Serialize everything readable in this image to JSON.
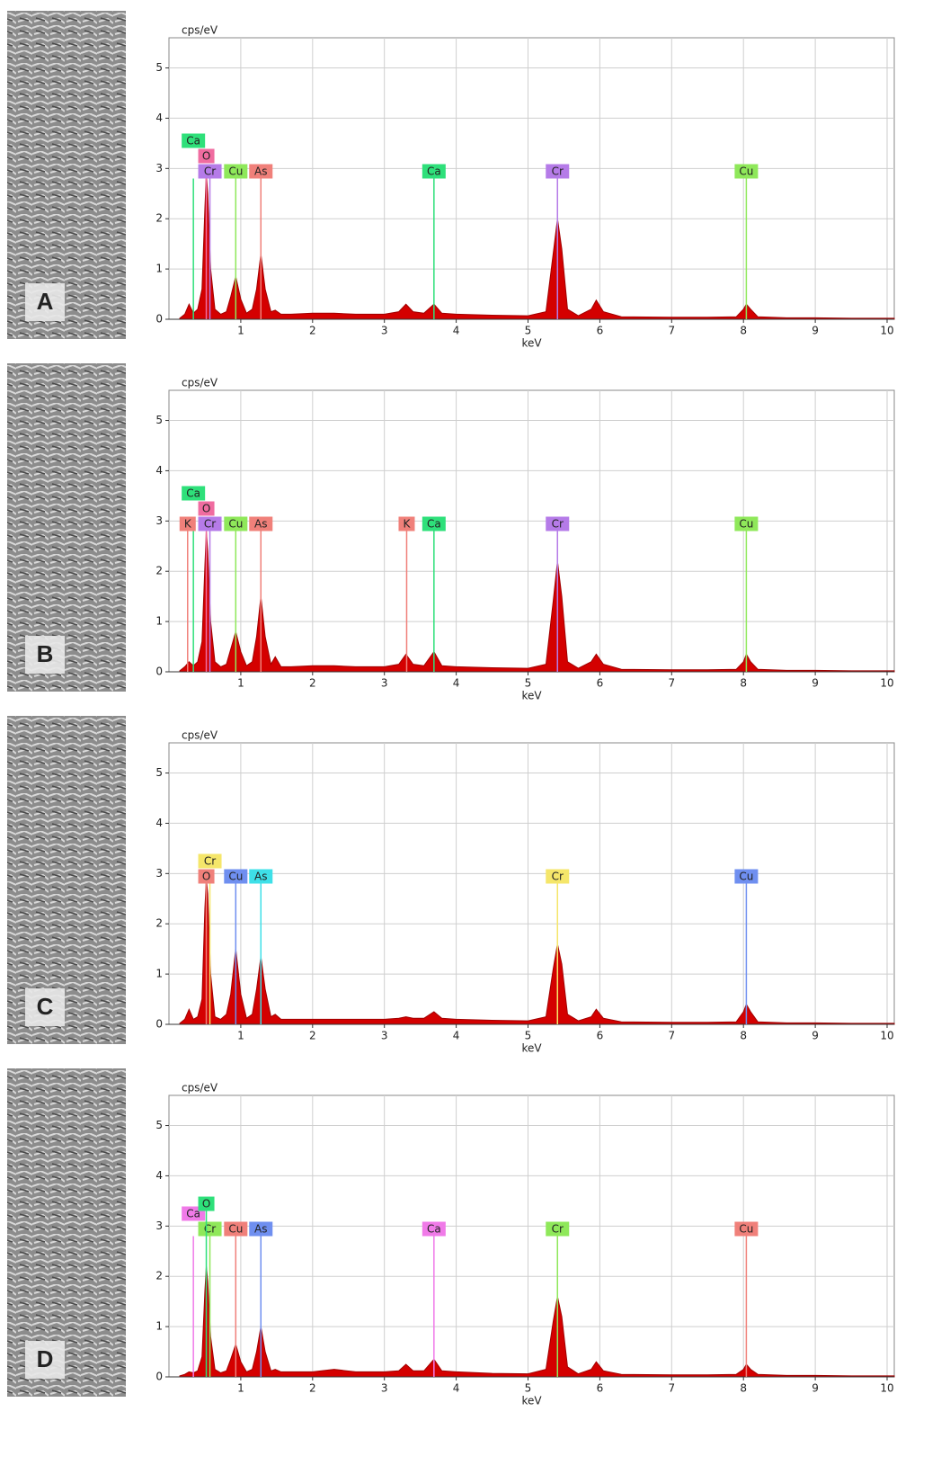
{
  "chart_data": [
    {
      "type": "area",
      "label": "A",
      "y_label": "cps/eV",
      "x_label": "keV",
      "color": "#d40000",
      "xlim": [
        0,
        10.1
      ],
      "ylim": [
        0,
        5.6
      ],
      "xticks": [
        1,
        2,
        3,
        4,
        5,
        6,
        7,
        8,
        9,
        10
      ],
      "yticks": [
        0,
        1,
        2,
        3,
        4,
        5
      ],
      "grid": true,
      "x": [
        0.15,
        0.22,
        0.28,
        0.34,
        0.4,
        0.46,
        0.5,
        0.52,
        0.54,
        0.58,
        0.64,
        0.72,
        0.8,
        0.86,
        0.93,
        1.0,
        1.08,
        1.16,
        1.22,
        1.28,
        1.34,
        1.42,
        1.48,
        1.56,
        1.7,
        2.0,
        2.3,
        2.6,
        3.0,
        3.2,
        3.3,
        3.4,
        3.55,
        3.69,
        3.8,
        4.0,
        4.5,
        5.0,
        5.25,
        5.35,
        5.41,
        5.47,
        5.55,
        5.7,
        5.88,
        5.95,
        6.05,
        6.3,
        7.0,
        7.5,
        7.9,
        8.0,
        8.04,
        8.1,
        8.2,
        8.6,
        9.0,
        9.5,
        10.1
      ],
      "values": [
        0.02,
        0.1,
        0.3,
        0.12,
        0.2,
        0.6,
        2.2,
        2.9,
        2.5,
        1.0,
        0.2,
        0.1,
        0.15,
        0.45,
        0.85,
        0.4,
        0.12,
        0.2,
        0.6,
        1.3,
        0.6,
        0.15,
        0.18,
        0.1,
        0.1,
        0.12,
        0.12,
        0.1,
        0.1,
        0.15,
        0.3,
        0.15,
        0.12,
        0.3,
        0.12,
        0.1,
        0.08,
        0.07,
        0.15,
        1.3,
        2.0,
        1.4,
        0.2,
        0.07,
        0.2,
        0.38,
        0.15,
        0.05,
        0.04,
        0.04,
        0.05,
        0.2,
        0.3,
        0.2,
        0.05,
        0.03,
        0.03,
        0.02,
        0.02
      ],
      "lines": [
        {
          "name": "Cr",
          "color": "#b57be8",
          "energy": 0.57,
          "height": 2.8
        },
        {
          "name": "O",
          "color": "#f06ca0",
          "energy": 0.52,
          "height": 2.8
        },
        {
          "name": "Ca",
          "color": "#2ee07a",
          "energy": 0.34,
          "height": 2.8
        },
        {
          "name": "Cu",
          "color": "#8fe85a",
          "energy": 0.93,
          "height": 2.8
        },
        {
          "name": "As",
          "color": "#f0807a",
          "energy": 1.28,
          "height": 2.8
        },
        {
          "name": "Ca",
          "color": "#2ee07a",
          "energy": 3.69,
          "height": 2.8
        },
        {
          "name": "Cr",
          "color": "#b57be8",
          "energy": 5.41,
          "height": 2.8
        },
        {
          "name": "Cu",
          "color": "#8fe85a",
          "energy": 8.04,
          "height": 2.8
        }
      ]
    },
    {
      "type": "area",
      "label": "B",
      "y_label": "cps/eV",
      "x_label": "keV",
      "color": "#d40000",
      "xlim": [
        0,
        10.1
      ],
      "ylim": [
        0,
        5.6
      ],
      "xticks": [
        1,
        2,
        3,
        4,
        5,
        6,
        7,
        8,
        9,
        10
      ],
      "yticks": [
        0,
        1,
        2,
        3,
        4,
        5
      ],
      "grid": true,
      "x": [
        0.15,
        0.22,
        0.28,
        0.34,
        0.4,
        0.46,
        0.5,
        0.52,
        0.54,
        0.58,
        0.64,
        0.72,
        0.8,
        0.86,
        0.93,
        1.0,
        1.08,
        1.16,
        1.22,
        1.28,
        1.34,
        1.42,
        1.48,
        1.56,
        1.7,
        2.0,
        2.3,
        2.6,
        3.0,
        3.2,
        3.3,
        3.4,
        3.55,
        3.69,
        3.8,
        4.0,
        4.5,
        5.0,
        5.25,
        5.35,
        5.41,
        5.47,
        5.55,
        5.7,
        5.88,
        5.95,
        6.05,
        6.3,
        7.0,
        7.5,
        7.9,
        8.0,
        8.04,
        8.1,
        8.2,
        8.6,
        9.0,
        9.5,
        10.1
      ],
      "values": [
        0.02,
        0.1,
        0.2,
        0.12,
        0.2,
        0.6,
        2.1,
        2.8,
        2.4,
        1.0,
        0.2,
        0.1,
        0.15,
        0.45,
        0.8,
        0.4,
        0.12,
        0.2,
        0.7,
        1.5,
        0.7,
        0.15,
        0.3,
        0.1,
        0.1,
        0.12,
        0.12,
        0.1,
        0.1,
        0.15,
        0.35,
        0.15,
        0.12,
        0.4,
        0.12,
        0.1,
        0.08,
        0.07,
        0.15,
        1.4,
        2.2,
        1.5,
        0.2,
        0.07,
        0.2,
        0.35,
        0.15,
        0.05,
        0.04,
        0.04,
        0.05,
        0.2,
        0.35,
        0.2,
        0.05,
        0.03,
        0.03,
        0.02,
        0.02
      ],
      "lines": [
        {
          "name": "Cr",
          "color": "#b57be8",
          "energy": 0.57,
          "height": 2.8
        },
        {
          "name": "O",
          "color": "#f06ca0",
          "energy": 0.52,
          "height": 2.8
        },
        {
          "name": "Ca",
          "color": "#2ee07a",
          "energy": 0.34,
          "height": 2.8
        },
        {
          "name": "K",
          "color": "#f0807a",
          "energy": 0.26,
          "height": 2.8
        },
        {
          "name": "Cu",
          "color": "#8fe85a",
          "energy": 0.93,
          "height": 2.8
        },
        {
          "name": "As",
          "color": "#f0807a",
          "energy": 1.28,
          "height": 2.8
        },
        {
          "name": "K",
          "color": "#f0807a",
          "energy": 3.31,
          "height": 2.8
        },
        {
          "name": "Ca",
          "color": "#2ee07a",
          "energy": 3.69,
          "height": 2.8
        },
        {
          "name": "Cr",
          "color": "#b57be8",
          "energy": 5.41,
          "height": 2.8
        },
        {
          "name": "Cu",
          "color": "#8fe85a",
          "energy": 8.04,
          "height": 2.8
        }
      ]
    },
    {
      "type": "area",
      "label": "C",
      "y_label": "cps/eV",
      "x_label": "keV",
      "color": "#d40000",
      "xlim": [
        0,
        10.1
      ],
      "ylim": [
        0,
        5.6
      ],
      "xticks": [
        1,
        2,
        3,
        4,
        5,
        6,
        7,
        8,
        9,
        10
      ],
      "yticks": [
        0,
        1,
        2,
        3,
        4,
        5
      ],
      "grid": true,
      "x": [
        0.15,
        0.22,
        0.28,
        0.34,
        0.4,
        0.46,
        0.5,
        0.52,
        0.54,
        0.58,
        0.64,
        0.72,
        0.8,
        0.86,
        0.93,
        1.0,
        1.08,
        1.16,
        1.22,
        1.28,
        1.34,
        1.42,
        1.48,
        1.56,
        1.7,
        2.0,
        2.3,
        2.6,
        3.0,
        3.2,
        3.3,
        3.4,
        3.55,
        3.69,
        3.8,
        4.0,
        4.5,
        5.0,
        5.25,
        5.35,
        5.41,
        5.47,
        5.55,
        5.7,
        5.88,
        5.95,
        6.05,
        6.3,
        7.0,
        7.5,
        7.9,
        8.0,
        8.04,
        8.1,
        8.2,
        8.6,
        9.0,
        9.5,
        10.1
      ],
      "values": [
        0.02,
        0.1,
        0.3,
        0.1,
        0.15,
        0.5,
        2.3,
        2.9,
        2.6,
        1.0,
        0.15,
        0.1,
        0.2,
        0.6,
        1.5,
        0.6,
        0.12,
        0.2,
        0.7,
        1.35,
        0.7,
        0.15,
        0.2,
        0.1,
        0.1,
        0.1,
        0.1,
        0.1,
        0.1,
        0.12,
        0.15,
        0.12,
        0.12,
        0.25,
        0.12,
        0.1,
        0.08,
        0.07,
        0.15,
        1.1,
        1.6,
        1.2,
        0.2,
        0.07,
        0.15,
        0.3,
        0.12,
        0.05,
        0.04,
        0.04,
        0.05,
        0.25,
        0.4,
        0.25,
        0.05,
        0.03,
        0.03,
        0.02,
        0.02
      ],
      "lines": [
        {
          "name": "O",
          "color": "#f0807a",
          "energy": 0.52,
          "height": 2.8
        },
        {
          "name": "Cr",
          "color": "#f5e66a",
          "energy": 0.57,
          "height": 2.8
        },
        {
          "name": "Cu",
          "color": "#6f8ff0",
          "energy": 0.93,
          "height": 2.8
        },
        {
          "name": "As",
          "color": "#3ee0e8",
          "energy": 1.28,
          "height": 2.8
        },
        {
          "name": "Cr",
          "color": "#f5e66a",
          "energy": 5.41,
          "height": 2.8
        },
        {
          "name": "Cu",
          "color": "#6f8ff0",
          "energy": 8.04,
          "height": 2.8
        }
      ]
    },
    {
      "type": "area",
      "label": "D",
      "y_label": "cps/eV",
      "x_label": "keV",
      "color": "#d40000",
      "xlim": [
        0,
        10.1
      ],
      "ylim": [
        0,
        5.6
      ],
      "xticks": [
        1,
        2,
        3,
        4,
        5,
        6,
        7,
        8,
        9,
        10
      ],
      "yticks": [
        0,
        1,
        2,
        3,
        4,
        5
      ],
      "grid": true,
      "x": [
        0.15,
        0.22,
        0.28,
        0.34,
        0.4,
        0.46,
        0.5,
        0.52,
        0.54,
        0.58,
        0.64,
        0.72,
        0.8,
        0.86,
        0.93,
        1.0,
        1.08,
        1.16,
        1.22,
        1.28,
        1.34,
        1.42,
        1.48,
        1.56,
        1.7,
        2.0,
        2.3,
        2.6,
        3.0,
        3.2,
        3.3,
        3.4,
        3.55,
        3.69,
        3.8,
        4.0,
        4.5,
        5.0,
        5.25,
        5.35,
        5.41,
        5.47,
        5.55,
        5.7,
        5.88,
        5.95,
        6.05,
        6.3,
        7.0,
        7.5,
        7.9,
        8.0,
        8.04,
        8.1,
        8.2,
        8.6,
        9.0,
        9.5,
        10.1
      ],
      "values": [
        0.02,
        0.05,
        0.1,
        0.08,
        0.12,
        0.4,
        1.7,
        2.2,
        1.9,
        0.8,
        0.15,
        0.08,
        0.12,
        0.35,
        0.65,
        0.3,
        0.1,
        0.15,
        0.5,
        1.0,
        0.5,
        0.12,
        0.15,
        0.1,
        0.1,
        0.1,
        0.15,
        0.1,
        0.1,
        0.12,
        0.25,
        0.12,
        0.12,
        0.35,
        0.12,
        0.1,
        0.07,
        0.06,
        0.15,
        1.1,
        1.6,
        1.2,
        0.2,
        0.06,
        0.15,
        0.3,
        0.12,
        0.05,
        0.04,
        0.04,
        0.05,
        0.15,
        0.25,
        0.15,
        0.05,
        0.03,
        0.03,
        0.02,
        0.02
      ],
      "lines": [
        {
          "name": "Cr",
          "color": "#8fe85a",
          "energy": 0.57,
          "height": 2.8
        },
        {
          "name": "Ca",
          "color": "#f07ae8",
          "energy": 0.34,
          "height": 2.8
        },
        {
          "name": "O",
          "color": "#2ee07a",
          "energy": 0.52,
          "height": 3.3
        },
        {
          "name": "Cu",
          "color": "#f0807a",
          "energy": 0.93,
          "height": 2.8
        },
        {
          "name": "As",
          "color": "#6f8ff0",
          "energy": 1.28,
          "height": 2.8
        },
        {
          "name": "Ca",
          "color": "#f07ae8",
          "energy": 3.69,
          "height": 2.8
        },
        {
          "name": "Cr",
          "color": "#8fe85a",
          "energy": 5.41,
          "height": 2.8
        },
        {
          "name": "Cu",
          "color": "#f0807a",
          "energy": 8.04,
          "height": 2.8
        }
      ]
    }
  ]
}
